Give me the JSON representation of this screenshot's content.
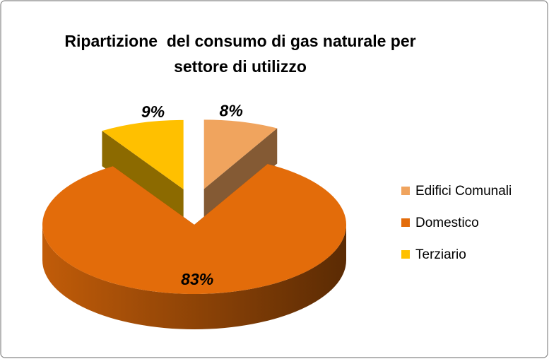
{
  "chart_data": {
    "type": "pie",
    "title": "Ripartizione  del consumo di gas naturale per settore di utilizzo",
    "categories": [
      "Edifici Comunali",
      "Domestico",
      "Terziario"
    ],
    "values": [
      8,
      83,
      9
    ],
    "value_labels": [
      "8%",
      "83%",
      "9%"
    ],
    "colors": [
      "#f0a45e",
      "#e36c0a",
      "#ffc000"
    ],
    "explode": [
      true,
      false,
      true
    ],
    "legend": "right"
  }
}
